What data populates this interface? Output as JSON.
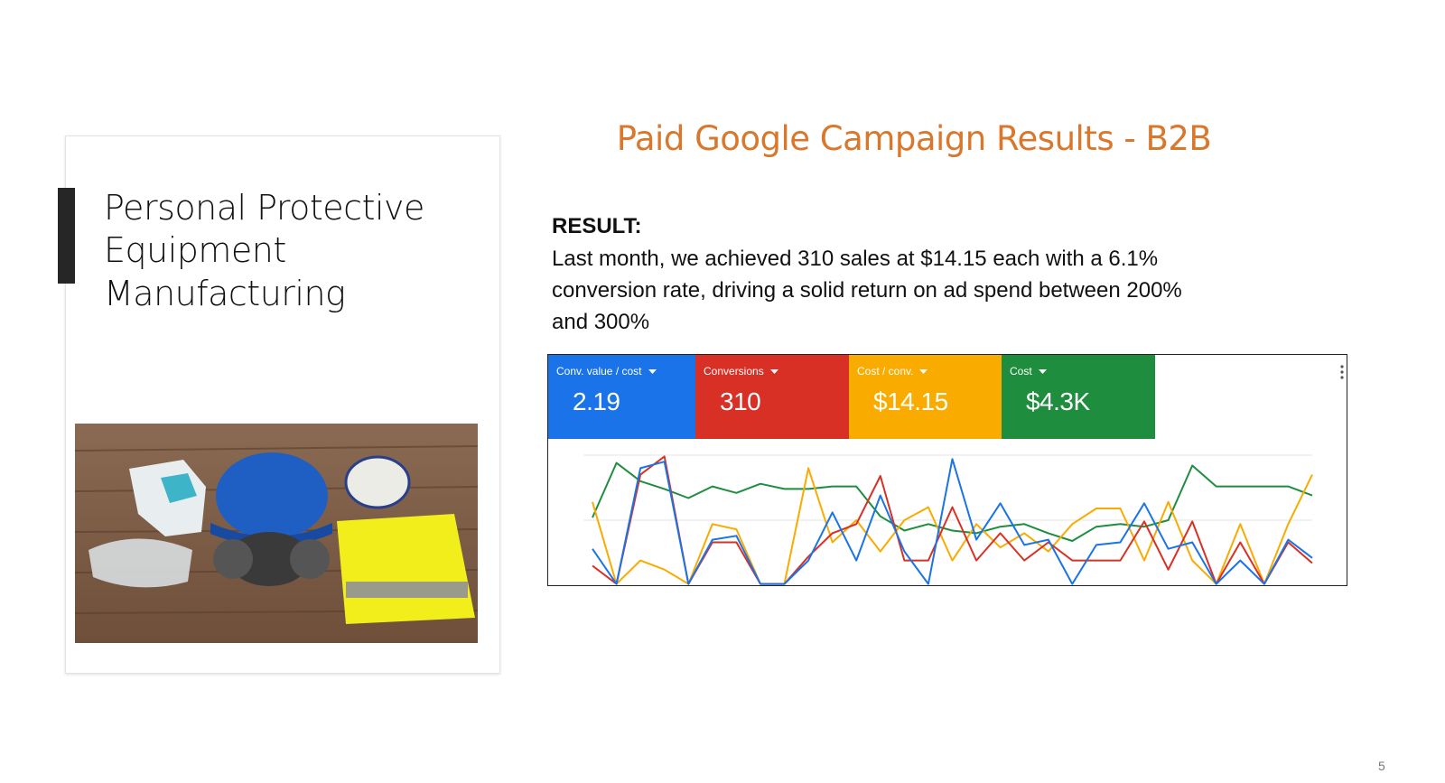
{
  "slide": {
    "left_title_lines": [
      "Personal Protective",
      "Equipment",
      "Manufacturing"
    ],
    "heading": "Paid Google Campaign Results - B2B",
    "result_label": "RESULT:",
    "result_lines": [
      "Last month, we achieved 310 sales at $14.15 each with a 6.1%",
      "conversion rate, driving a solid return on ad spend between 200%",
      "and 300%"
    ],
    "page_number": "5"
  },
  "chart_data": {
    "type": "line",
    "ylim": [
      0,
      100
    ],
    "grid": true,
    "series": [
      {
        "name": "Conv. value / cost",
        "kpi": "2.19",
        "color": "#1a73e8",
        "values": [
          28,
          1,
          90,
          95,
          1,
          35,
          38,
          1,
          1,
          19,
          56,
          19,
          69,
          26,
          1,
          97,
          35,
          63,
          31,
          35,
          1,
          31,
          33,
          63,
          28,
          33,
          1,
          19,
          1,
          35,
          21
        ]
      },
      {
        "name": "Conversions",
        "kpi": "310",
        "color": "#d93025",
        "values": [
          15,
          1,
          85,
          99,
          1,
          33,
          33,
          1,
          1,
          22,
          40,
          47,
          84,
          19,
          19,
          60,
          19,
          40,
          19,
          33,
          19,
          19,
          19,
          49,
          12,
          49,
          1,
          33,
          1,
          33,
          17
        ]
      },
      {
        "name": "Cost / conv.",
        "kpi": "$14.15",
        "color": "#f9ab00",
        "values": [
          64,
          1,
          19,
          12,
          1,
          47,
          43,
          1,
          1,
          90,
          33,
          50,
          26,
          50,
          60,
          19,
          47,
          29,
          40,
          26,
          47,
          59,
          59,
          19,
          64,
          19,
          1,
          47,
          1,
          47,
          85
        ]
      },
      {
        "name": "Cost",
        "kpi": "$4.3K",
        "color": "#1e8e3e",
        "values": [
          52,
          94,
          80,
          74,
          67,
          76,
          71,
          78,
          74,
          74,
          76,
          76,
          53,
          42,
          47,
          42,
          40,
          45,
          47,
          40,
          34,
          45,
          47,
          45,
          50,
          92,
          76,
          76,
          76,
          76,
          69
        ]
      }
    ]
  }
}
